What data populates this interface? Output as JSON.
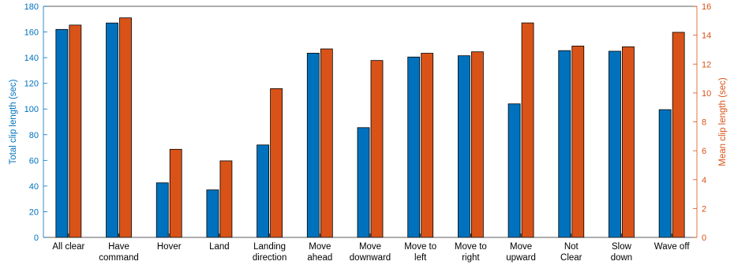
{
  "chart_data": {
    "type": "bar",
    "categories": [
      [
        "All clear"
      ],
      [
        "Have",
        "command"
      ],
      [
        "Hover"
      ],
      [
        "Land"
      ],
      [
        "Landing",
        "direction"
      ],
      [
        "Move",
        "ahead"
      ],
      [
        "Move",
        "downward"
      ],
      [
        "Move to",
        "left"
      ],
      [
        "Move to",
        "right"
      ],
      [
        "Move",
        "upward"
      ],
      [
        "Not",
        "Clear"
      ],
      [
        "Slow",
        "down"
      ],
      [
        "Wave off"
      ]
    ],
    "series": [
      {
        "name": "Total clip length (sec)",
        "axis": "left",
        "color": "#0072BD",
        "values": [
          162,
          167,
          42.5,
          37,
          72,
          143.5,
          85.5,
          140.5,
          141.5,
          104,
          145.5,
          145,
          99.5
        ]
      },
      {
        "name": "Mean clip length (sec)",
        "axis": "right",
        "color": "#D95319",
        "values": [
          14.7,
          15.2,
          6.1,
          5.3,
          10.3,
          13.05,
          12.25,
          12.75,
          12.85,
          14.85,
          13.25,
          13.2,
          14.2
        ]
      }
    ],
    "ylabel_left": "Total clip length (sec)",
    "ylabel_right": "Mean clip length (sec)",
    "ylim_left": [
      0,
      180
    ],
    "ylim_right": [
      0,
      16
    ],
    "yticks_left": [
      0,
      20,
      40,
      60,
      80,
      100,
      120,
      140,
      160,
      180
    ],
    "yticks_right": [
      0,
      2,
      4,
      6,
      8,
      10,
      12,
      14,
      16
    ],
    "grid": false,
    "legend": "none",
    "axis_colors": {
      "left": "#0072BD",
      "right": "#D95319"
    }
  }
}
